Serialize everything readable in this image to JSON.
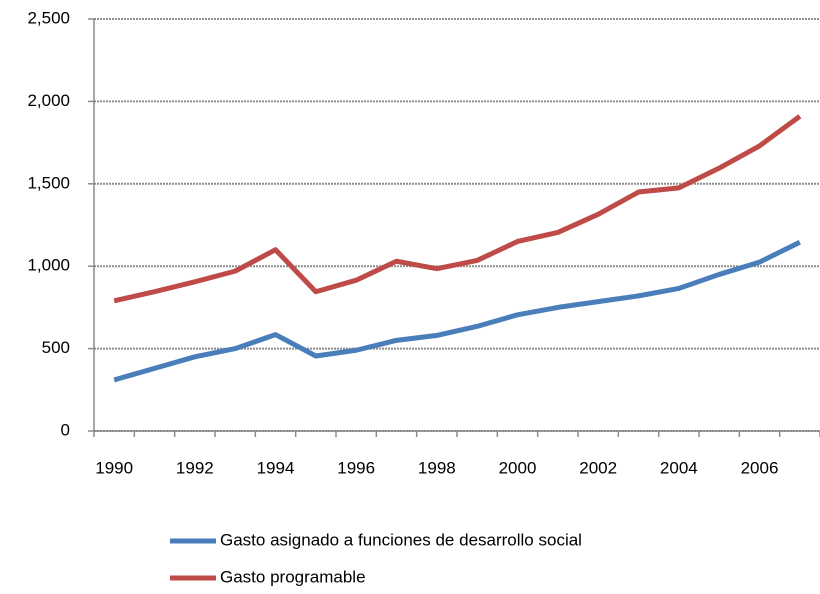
{
  "chart_data": {
    "type": "line",
    "categories": [
      "1990",
      null,
      "1992",
      null,
      "1994",
      null,
      "1996",
      null,
      "1998",
      null,
      "2000",
      null,
      "2002",
      null,
      "2004",
      null,
      "2006",
      null
    ],
    "series": [
      {
        "name": "Gasto asignado a funciones de desarrollo social",
        "color": "#4a7ebb",
        "values": [
          310,
          380,
          450,
          500,
          585,
          455,
          490,
          550,
          580,
          635,
          705,
          750,
          785,
          820,
          865,
          950,
          1025,
          1145
        ]
      },
      {
        "name": "Gasto programable",
        "color": "#be4b48",
        "values": [
          790,
          845,
          905,
          970,
          1100,
          845,
          915,
          1030,
          985,
          1035,
          1150,
          1205,
          1315,
          1450,
          1475,
          1595,
          1730,
          1910
        ]
      }
    ],
    "ylim": [
      0,
      2500
    ],
    "yticks": [
      0,
      500,
      {
        "value": 1000,
        "label": "1,000"
      },
      {
        "value": 1500,
        "label": "1,500"
      },
      {
        "value": 2000,
        "label": "2,000"
      },
      {
        "value": 2500,
        "label": "2,500"
      }
    ],
    "grid": true,
    "legend": "bottom"
  }
}
